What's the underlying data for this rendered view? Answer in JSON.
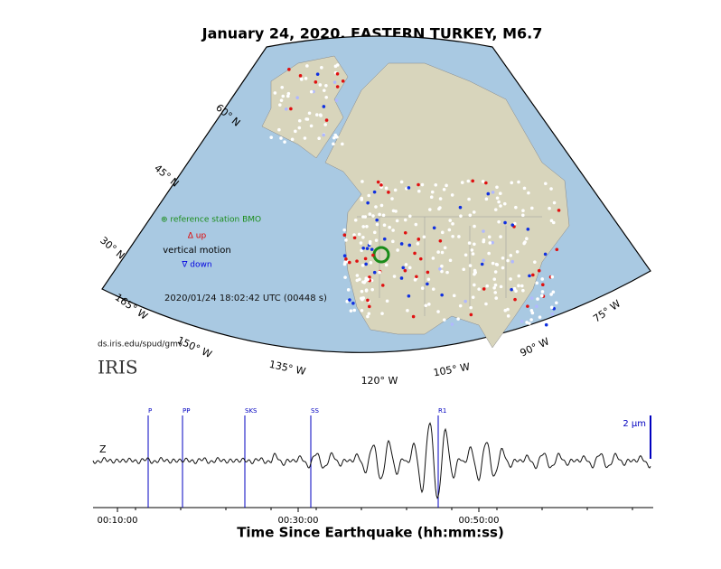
{
  "title": "January 24, 2020, EASTERN TURKEY, M6.7",
  "map": {
    "lat_labels": [
      "60° N",
      "45° N",
      "30° N"
    ],
    "lon_labels": [
      "165° W",
      "150° W",
      "135° W",
      "120° W",
      "105° W",
      "90° W",
      "75° W"
    ],
    "legend": {
      "reference": "⊕ reference station BMO",
      "up": "Δ up",
      "motion": "vertical motion",
      "down": "∇ down"
    },
    "timestamp": "2020/01/24 18:02:42 UTC (00448 s)",
    "source": "ds.iris.edu/spud/gmv",
    "logo": "IRIS"
  },
  "seismogram": {
    "component": "Z",
    "scale_label": "2 μm",
    "phases": [
      "P",
      "PP",
      "SKS",
      "SS",
      "R1"
    ],
    "time_ticks": [
      "00:10:00",
      "00:30:00",
      "00:50:00"
    ],
    "axis_label": "Time Since Earthquake (hh:mm:ss)"
  }
}
